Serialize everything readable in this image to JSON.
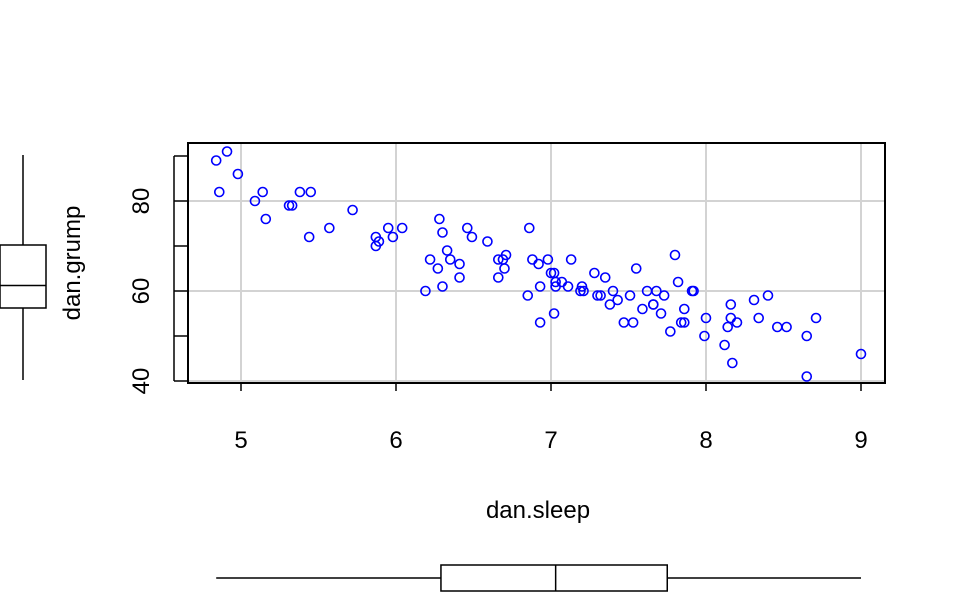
{
  "chart_data": {
    "type": "scatter",
    "title": "",
    "xlabel": "dan.sleep",
    "ylabel": "dan.grump",
    "xlim": [
      4.7,
      9.2
    ],
    "ylim": [
      40,
      92
    ],
    "grid": true,
    "point_color": "#0000FF",
    "x_ticks": [
      5,
      6,
      7,
      8,
      9
    ],
    "x_tick_labels": [
      "5",
      "6",
      "7",
      "8",
      "9"
    ],
    "y_ticks": [
      40,
      60,
      80
    ],
    "y_tick_labels": [
      "40",
      "60",
      "80"
    ],
    "y_minor_ticks": [
      50,
      70,
      90
    ],
    "points": [
      {
        "x": 4.84,
        "y": 89
      },
      {
        "x": 4.91,
        "y": 91
      },
      {
        "x": 4.86,
        "y": 82
      },
      {
        "x": 4.98,
        "y": 86
      },
      {
        "x": 5.09,
        "y": 80
      },
      {
        "x": 5.14,
        "y": 82
      },
      {
        "x": 5.16,
        "y": 76
      },
      {
        "x": 5.31,
        "y": 79
      },
      {
        "x": 5.33,
        "y": 79
      },
      {
        "x": 5.38,
        "y": 82
      },
      {
        "x": 5.45,
        "y": 82
      },
      {
        "x": 5.44,
        "y": 72
      },
      {
        "x": 5.57,
        "y": 74
      },
      {
        "x": 5.72,
        "y": 78
      },
      {
        "x": 5.87,
        "y": 72
      },
      {
        "x": 5.89,
        "y": 71
      },
      {
        "x": 5.87,
        "y": 70
      },
      {
        "x": 5.95,
        "y": 74
      },
      {
        "x": 5.98,
        "y": 72
      },
      {
        "x": 6.04,
        "y": 74
      },
      {
        "x": 6.19,
        "y": 60
      },
      {
        "x": 6.22,
        "y": 67
      },
      {
        "x": 6.27,
        "y": 65
      },
      {
        "x": 6.28,
        "y": 76
      },
      {
        "x": 6.3,
        "y": 73
      },
      {
        "x": 6.3,
        "y": 61
      },
      {
        "x": 6.33,
        "y": 69
      },
      {
        "x": 6.35,
        "y": 67
      },
      {
        "x": 6.41,
        "y": 66
      },
      {
        "x": 6.41,
        "y": 63
      },
      {
        "x": 6.46,
        "y": 74
      },
      {
        "x": 6.49,
        "y": 72
      },
      {
        "x": 6.59,
        "y": 71
      },
      {
        "x": 6.66,
        "y": 67
      },
      {
        "x": 6.66,
        "y": 63
      },
      {
        "x": 6.69,
        "y": 67
      },
      {
        "x": 6.7,
        "y": 65
      },
      {
        "x": 6.71,
        "y": 68
      },
      {
        "x": 6.85,
        "y": 59
      },
      {
        "x": 6.86,
        "y": 74
      },
      {
        "x": 6.88,
        "y": 67
      },
      {
        "x": 6.92,
        "y": 66
      },
      {
        "x": 6.93,
        "y": 53
      },
      {
        "x": 6.93,
        "y": 61
      },
      {
        "x": 6.98,
        "y": 67
      },
      {
        "x": 7.0,
        "y": 64
      },
      {
        "x": 7.02,
        "y": 64
      },
      {
        "x": 7.02,
        "y": 55
      },
      {
        "x": 7.03,
        "y": 61
      },
      {
        "x": 7.03,
        "y": 62
      },
      {
        "x": 7.07,
        "y": 62
      },
      {
        "x": 7.11,
        "y": 61
      },
      {
        "x": 7.13,
        "y": 67
      },
      {
        "x": 7.19,
        "y": 60
      },
      {
        "x": 7.2,
        "y": 61
      },
      {
        "x": 7.21,
        "y": 60
      },
      {
        "x": 7.28,
        "y": 64
      },
      {
        "x": 7.3,
        "y": 59
      },
      {
        "x": 7.32,
        "y": 59
      },
      {
        "x": 7.35,
        "y": 63
      },
      {
        "x": 7.38,
        "y": 57
      },
      {
        "x": 7.4,
        "y": 60
      },
      {
        "x": 7.43,
        "y": 58
      },
      {
        "x": 7.47,
        "y": 53
      },
      {
        "x": 7.51,
        "y": 59
      },
      {
        "x": 7.53,
        "y": 53
      },
      {
        "x": 7.55,
        "y": 65
      },
      {
        "x": 7.59,
        "y": 56
      },
      {
        "x": 7.62,
        "y": 60
      },
      {
        "x": 7.66,
        "y": 57
      },
      {
        "x": 7.66,
        "y": 57
      },
      {
        "x": 7.68,
        "y": 60
      },
      {
        "x": 7.71,
        "y": 55
      },
      {
        "x": 7.73,
        "y": 59
      },
      {
        "x": 7.77,
        "y": 51
      },
      {
        "x": 7.8,
        "y": 68
      },
      {
        "x": 7.82,
        "y": 62
      },
      {
        "x": 7.84,
        "y": 53
      },
      {
        "x": 7.86,
        "y": 56
      },
      {
        "x": 7.86,
        "y": 53
      },
      {
        "x": 7.91,
        "y": 60
      },
      {
        "x": 7.92,
        "y": 60
      },
      {
        "x": 7.99,
        "y": 50
      },
      {
        "x": 8.0,
        "y": 54
      },
      {
        "x": 8.12,
        "y": 48
      },
      {
        "x": 8.14,
        "y": 52
      },
      {
        "x": 8.16,
        "y": 57
      },
      {
        "x": 8.16,
        "y": 54
      },
      {
        "x": 8.17,
        "y": 44
      },
      {
        "x": 8.2,
        "y": 53
      },
      {
        "x": 8.31,
        "y": 58
      },
      {
        "x": 8.34,
        "y": 54
      },
      {
        "x": 8.4,
        "y": 59
      },
      {
        "x": 8.46,
        "y": 52
      },
      {
        "x": 8.52,
        "y": 52
      },
      {
        "x": 8.65,
        "y": 41
      },
      {
        "x": 8.65,
        "y": 50
      },
      {
        "x": 8.71,
        "y": 54
      },
      {
        "x": 9.0,
        "y": 46
      }
    ],
    "x_boxplot": {
      "min": 4.84,
      "q1": 6.29,
      "median": 7.03,
      "q3": 7.75,
      "max": 9.0
    },
    "y_boxplot": {
      "min": 41,
      "q1": 57,
      "median": 62,
      "q3": 71,
      "max": 91
    }
  }
}
